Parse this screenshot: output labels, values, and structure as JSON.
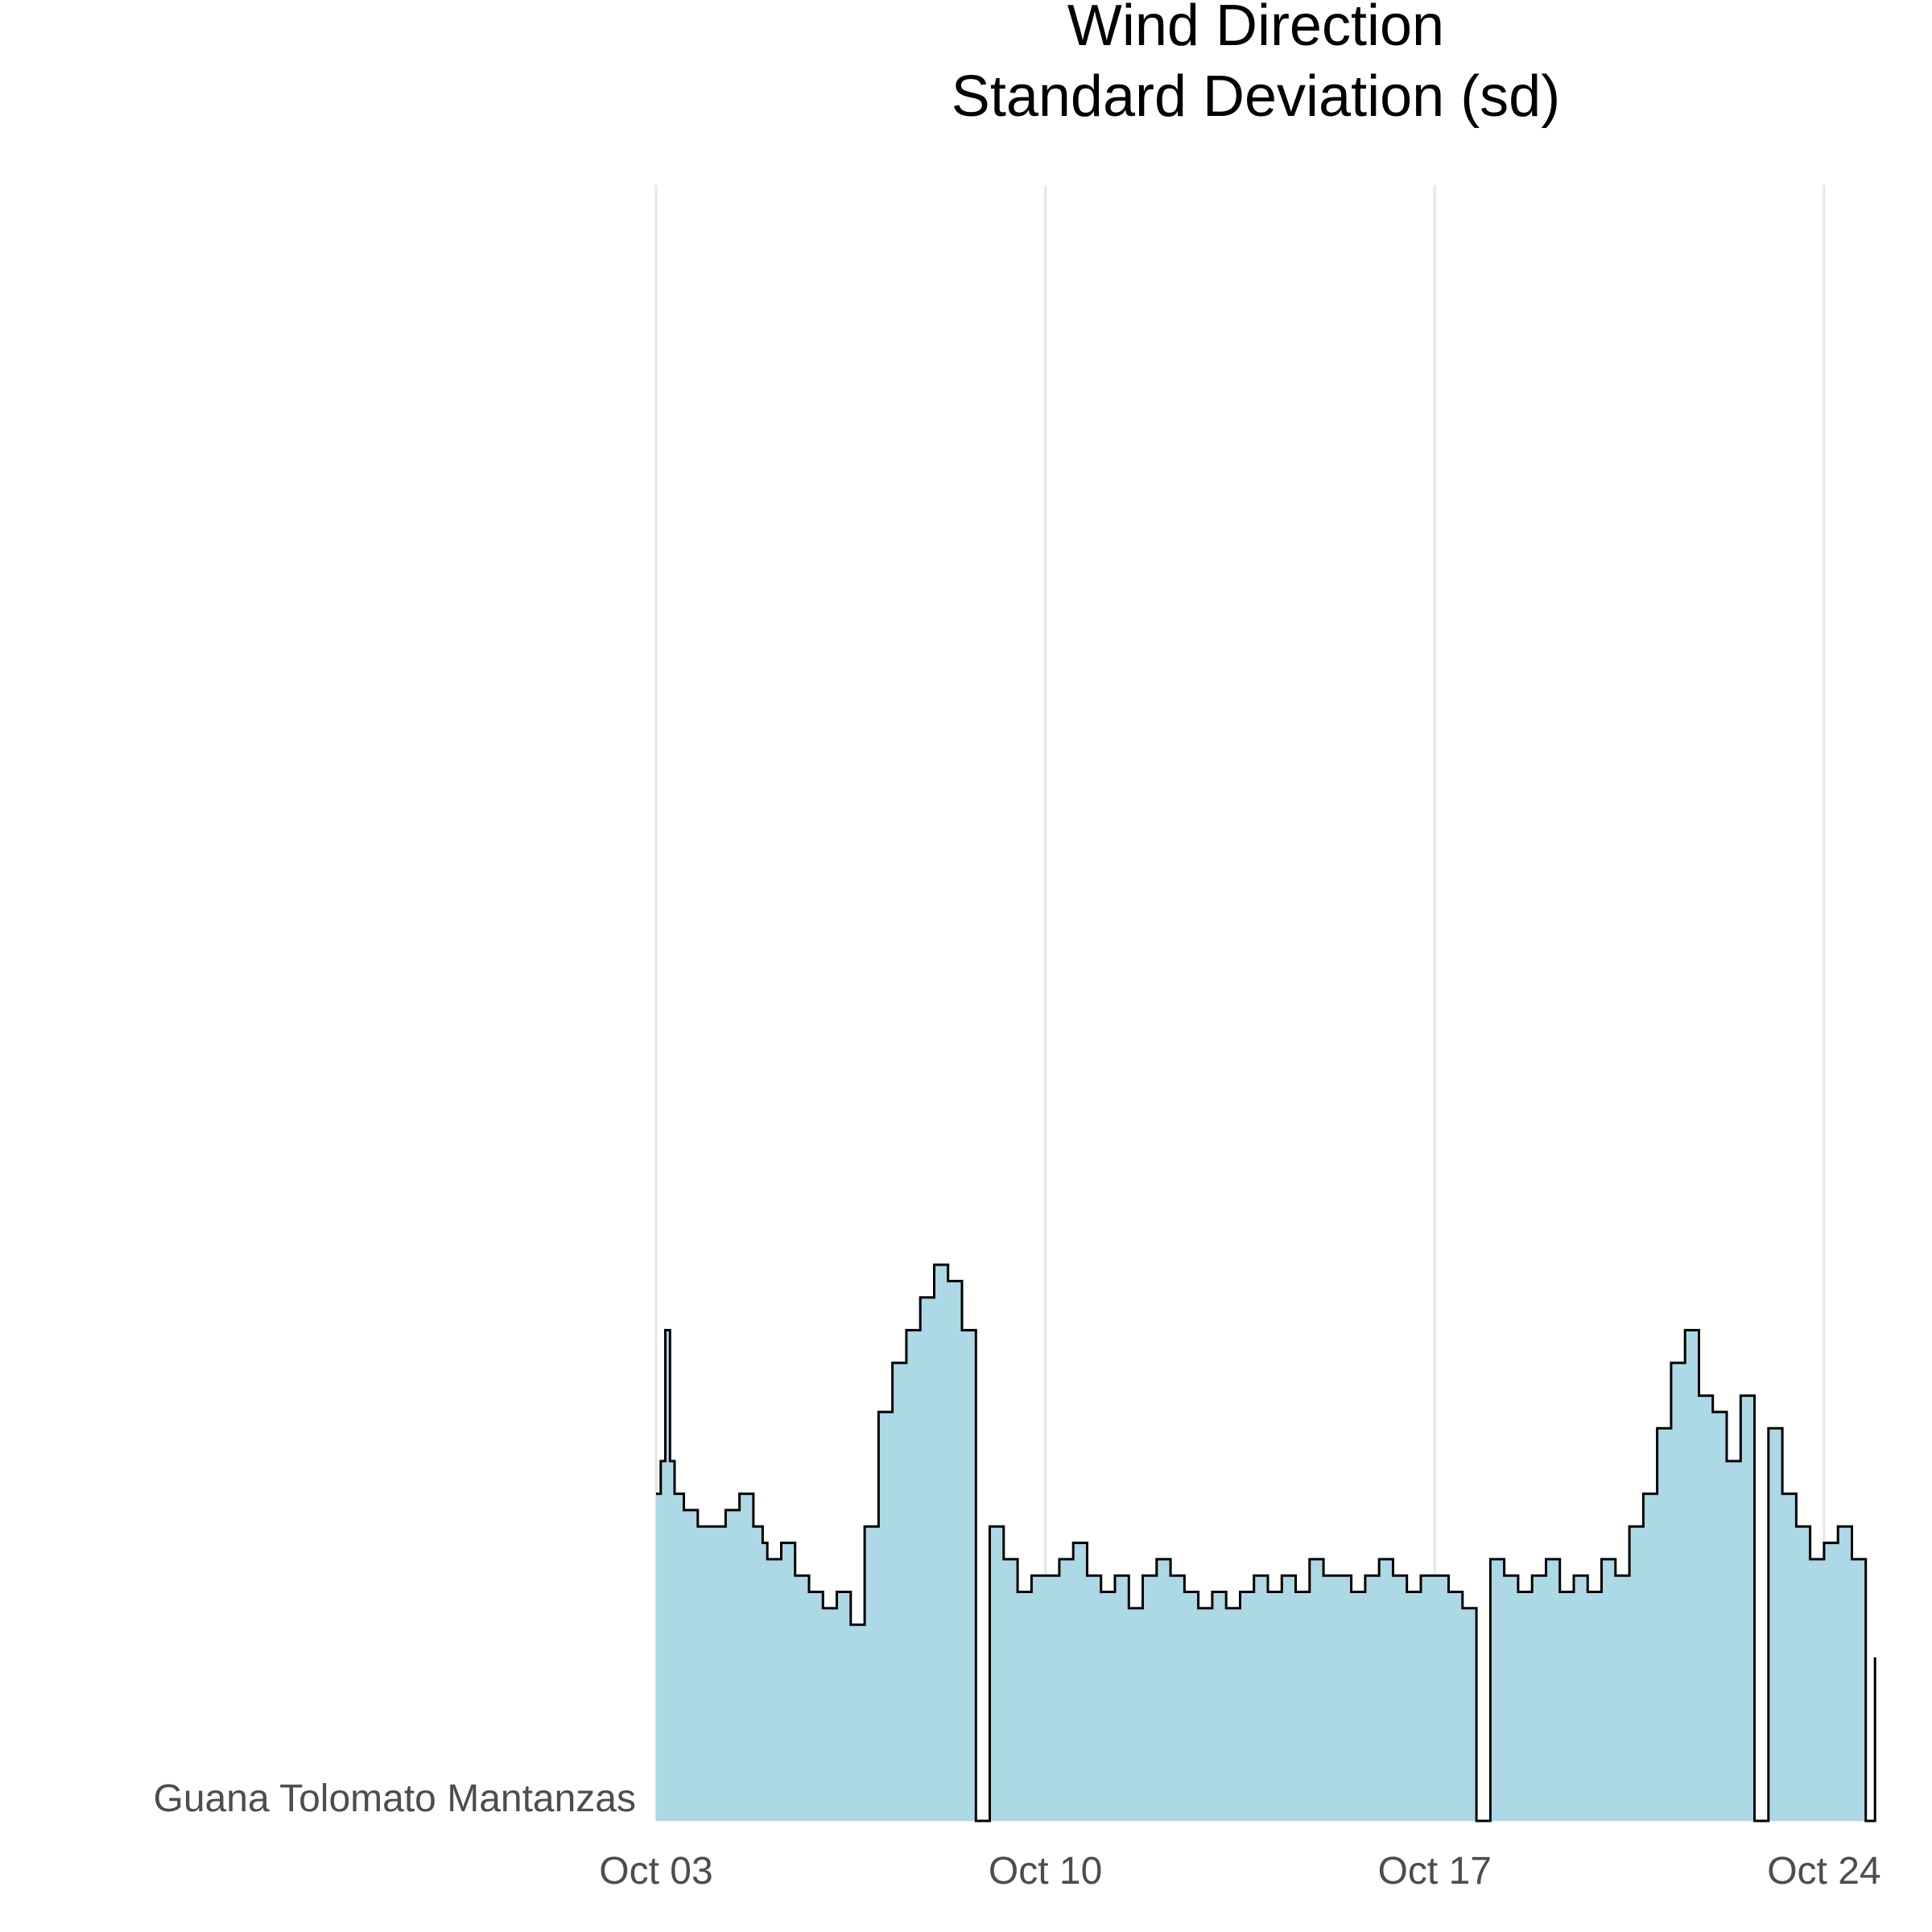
{
  "chart_data": {
    "type": "area",
    "title_lines": [
      "Wind Direction",
      "Standard Deviation (sd)"
    ],
    "row_label": "Guana Tolomato Mantanzas",
    "xlabel": "",
    "ylabel": "",
    "x_ticks": [
      {
        "date": "2023-10-03",
        "label": "Oct 03"
      },
      {
        "date": "2023-10-10",
        "label": "Oct 10"
      },
      {
        "date": "2023-10-17",
        "label": "Oct 17"
      },
      {
        "date": "2023-10-24",
        "label": "Oct 24"
      }
    ],
    "xlim": [
      "2023-10-03",
      "2023-10-25T00:00"
    ],
    "ylim": [
      0,
      100
    ],
    "grid": "vertical-major",
    "fill_color": "#add8e6",
    "line_color": "#000000",
    "series": [
      {
        "x": [
          "2023-10-03T00:00",
          "2023-10-03T02:00",
          "2023-10-03T04:00",
          "2023-10-03T06:00",
          "2023-10-03T08:00",
          "2023-10-03T12:00",
          "2023-10-03T18:00",
          "2023-10-04T00:00",
          "2023-10-04T06:00",
          "2023-10-04T12:00",
          "2023-10-04T18:00",
          "2023-10-04T22:00",
          "2023-10-05T00:00",
          "2023-10-05T06:00",
          "2023-10-05T12:00",
          "2023-10-05T18:00",
          "2023-10-06T00:00",
          "2023-10-06T06:00",
          "2023-10-06T12:00",
          "2023-10-06T18:00",
          "2023-10-07T00:00",
          "2023-10-07T06:00",
          "2023-10-07T12:00",
          "2023-10-07T18:00",
          "2023-10-08T00:00",
          "2023-10-08T06:00",
          "2023-10-08T12:00",
          "2023-10-08T18:00",
          "2023-10-09T00:00",
          "2023-10-09T06:00",
          "2023-10-09T12:00",
          "2023-10-09T18:00",
          "2023-10-10T00:00",
          "2023-10-10T06:00",
          "2023-10-10T12:00",
          "2023-10-10T18:00",
          "2023-10-11T00:00",
          "2023-10-11T06:00",
          "2023-10-11T12:00",
          "2023-10-11T18:00",
          "2023-10-12T00:00",
          "2023-10-12T06:00",
          "2023-10-12T12:00",
          "2023-10-12T18:00",
          "2023-10-13T00:00",
          "2023-10-13T06:00",
          "2023-10-13T12:00",
          "2023-10-13T18:00",
          "2023-10-14T00:00",
          "2023-10-14T06:00",
          "2023-10-14T12:00",
          "2023-10-14T18:00",
          "2023-10-15T00:00",
          "2023-10-15T06:00",
          "2023-10-15T12:00",
          "2023-10-15T18:00",
          "2023-10-16T00:00",
          "2023-10-16T06:00",
          "2023-10-16T12:00",
          "2023-10-16T18:00",
          "2023-10-17T00:00",
          "2023-10-17T06:00",
          "2023-10-17T12:00",
          "2023-10-17T18:00",
          "2023-10-18T00:00",
          "2023-10-18T06:00",
          "2023-10-18T12:00",
          "2023-10-18T18:00",
          "2023-10-19T00:00",
          "2023-10-19T06:00",
          "2023-10-19T12:00",
          "2023-10-19T18:00",
          "2023-10-20T00:00",
          "2023-10-20T06:00",
          "2023-10-20T12:00",
          "2023-10-20T18:00",
          "2023-10-21T00:00",
          "2023-10-21T06:00",
          "2023-10-21T12:00",
          "2023-10-21T18:00",
          "2023-10-22T00:00",
          "2023-10-22T06:00",
          "2023-10-22T12:00",
          "2023-10-22T18:00",
          "2023-10-23T00:00",
          "2023-10-23T06:00",
          "2023-10-23T12:00",
          "2023-10-23T18:00",
          "2023-10-24T00:00",
          "2023-10-24T06:00",
          "2023-10-24T12:00",
          "2023-10-24T18:00",
          "2023-10-24T22:00"
        ],
        "y": [
          20,
          22,
          30,
          22,
          20,
          19,
          18,
          18,
          19,
          20,
          18,
          17,
          16,
          17,
          15,
          14,
          13,
          14,
          12,
          18,
          25,
          28,
          30,
          32,
          34,
          33,
          30,
          0,
          18,
          16,
          14,
          15,
          15,
          16,
          17,
          15,
          14,
          15,
          13,
          15,
          16,
          15,
          14,
          13,
          14,
          13,
          14,
          15,
          14,
          15,
          14,
          16,
          15,
          15,
          14,
          15,
          16,
          15,
          14,
          15,
          15,
          14,
          13,
          0,
          16,
          15,
          14,
          15,
          16,
          14,
          15,
          14,
          16,
          15,
          18,
          20,
          24,
          28,
          30,
          26,
          25,
          22,
          26,
          0,
          24,
          20,
          18,
          16,
          17,
          18,
          16,
          0,
          10
        ]
      }
    ]
  }
}
